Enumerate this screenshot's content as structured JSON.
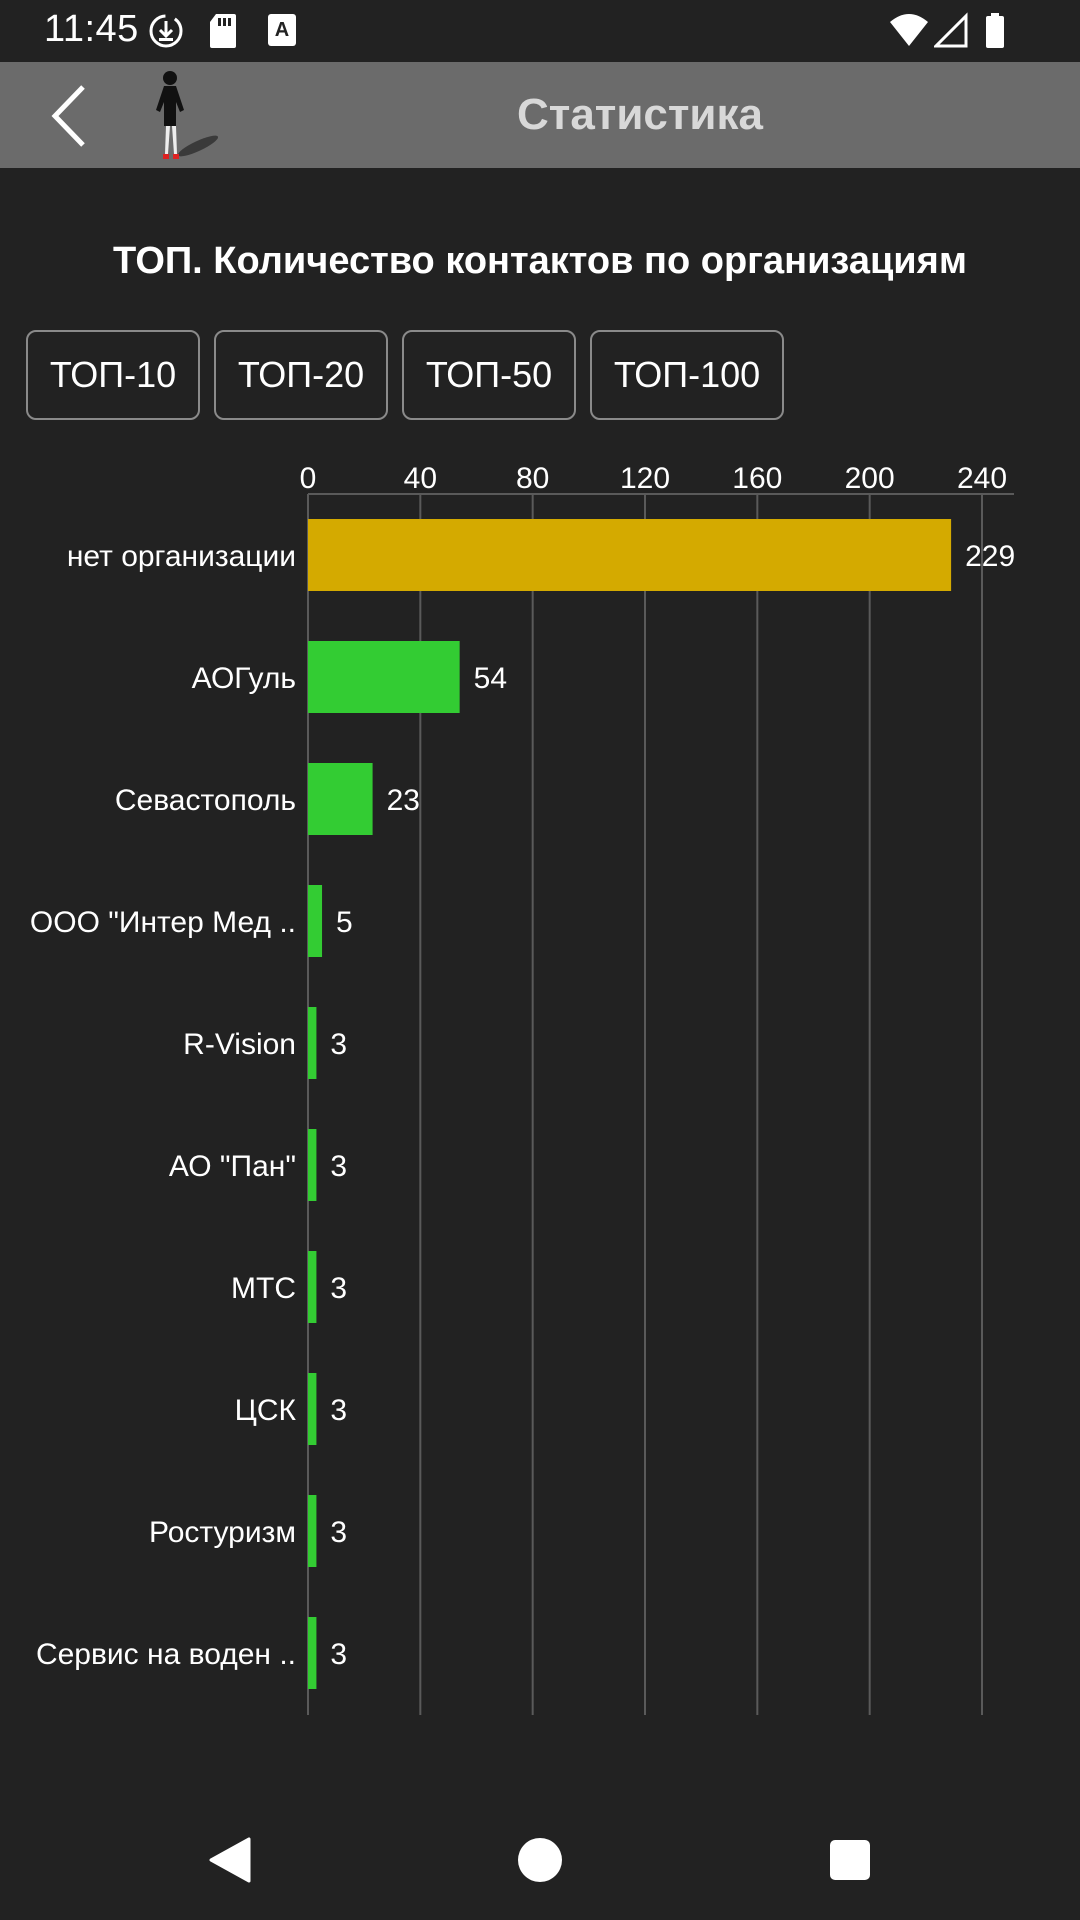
{
  "status_bar": {
    "time": "11:45",
    "icons_left": [
      "download-circle-icon",
      "sd-card-icon",
      "keyboard-a-icon"
    ],
    "icons_right": [
      "wifi-icon",
      "cell-signal-icon",
      "battery-icon"
    ]
  },
  "app_bar": {
    "title": "Статистика",
    "back_icon": "back-chevron-icon",
    "logo_icon": "businesswoman-logo-icon"
  },
  "page": {
    "chart_title": "ТОП. Количество контактов по организациям"
  },
  "tabs": [
    {
      "label": "ТОП-10",
      "active": true
    },
    {
      "label": "ТОП-20",
      "active": false
    },
    {
      "label": "ТОП-50",
      "active": false
    },
    {
      "label": "ТОП-100",
      "active": false
    }
  ],
  "chart_data": {
    "type": "bar",
    "orientation": "horizontal",
    "title": "ТОП. Количество контактов по организациям",
    "categories": [
      "нет организации",
      "АОГуль",
      "Севастополь",
      "ООО \"Интер Мед ..",
      "R-Vision",
      "АО \"Пан\"",
      "МТС",
      "ЦСК",
      "Ростуризм",
      "Сервис на воден .."
    ],
    "values": [
      229,
      54,
      23,
      5,
      3,
      3,
      3,
      3,
      3,
      3
    ],
    "xlim": [
      0,
      240
    ],
    "xticks": [
      0,
      40,
      80,
      120,
      160,
      200,
      240
    ],
    "x_axis_position": "top",
    "grid": true,
    "data_labels": true,
    "colors": {
      "highlight": "#d4aa00",
      "bar": "#33cc33",
      "grid": "#5a5a5a",
      "text": "#ffffff"
    }
  },
  "nav_bar": {
    "icons": [
      "nav-back-triangle-icon",
      "nav-home-circle-icon",
      "nav-recents-square-icon"
    ]
  }
}
